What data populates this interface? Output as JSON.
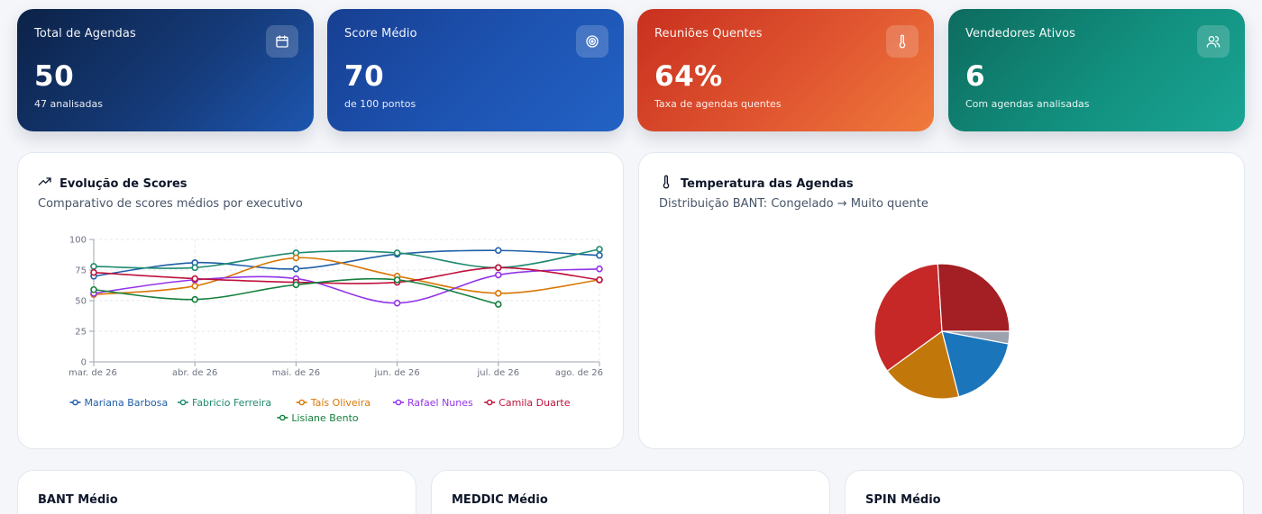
{
  "kpis": [
    {
      "title": "Total de Agendas",
      "value": "50",
      "sub": "47 analisadas",
      "icon": "calendar-icon"
    },
    {
      "title": "Score Médio",
      "value": "70",
      "sub": "de 100 pontos",
      "icon": "target-icon"
    },
    {
      "title": "Reuniões Quentes",
      "value": "64%",
      "sub": "Taxa de agendas quentes",
      "icon": "thermometer-icon"
    },
    {
      "title": "Vendedores Ativos",
      "value": "6",
      "sub": "Com agendas analisadas",
      "icon": "users-icon"
    }
  ],
  "line_card": {
    "title": "Evolução de Scores",
    "subtitle": "Comparativo de scores médios por executivo",
    "icon": "trending-up-icon"
  },
  "pie_card": {
    "title": "Temperatura das Agendas",
    "subtitle": "Distribuição BANT: Congelado → Muito quente",
    "icon": "thermometer-icon"
  },
  "bottom_cards": [
    {
      "title": "BANT Médio"
    },
    {
      "title": "MEDDIC Médio"
    },
    {
      "title": "SPIN Médio"
    }
  ],
  "chart_data": [
    {
      "type": "line",
      "title": "",
      "xlabel": "",
      "ylabel": "",
      "categories": [
        "mar. de 26",
        "abr. de 26",
        "mai. de 26",
        "jun. de 26",
        "jul. de 26",
        "ago. de 26"
      ],
      "ylim": [
        0,
        100
      ],
      "yticks": [
        "0",
        "25",
        "50",
        "75",
        "100"
      ],
      "grid": true,
      "legend": "bottom",
      "series": [
        {
          "name": "Mariana Barbosa",
          "color": "#1f5fa8",
          "values": [
            70,
            81,
            76,
            88,
            91,
            87
          ]
        },
        {
          "name": "Fabricio Ferreira",
          "color": "#1f8a70",
          "values": [
            78,
            77,
            89,
            89,
            77,
            92
          ]
        },
        {
          "name": "Taís Oliveira",
          "color": "#d97706",
          "values": [
            55,
            62,
            85,
            70,
            56,
            67
          ]
        },
        {
          "name": "Rafael Nunes",
          "color": "#9333ea",
          "values": [
            56,
            67,
            68,
            48,
            71,
            76
          ]
        },
        {
          "name": "Camila Duarte",
          "color": "#be123c",
          "values": [
            73,
            68,
            65,
            65,
            77,
            67
          ]
        },
        {
          "name": "Lisiane Bento",
          "color": "#15803d",
          "values": [
            59,
            51,
            63,
            67,
            47,
            null
          ]
        }
      ]
    },
    {
      "type": "pie",
      "title": "",
      "legend": "none",
      "slices": [
        {
          "label": "",
          "value": 3,
          "color": "#9ca3af"
        },
        {
          "label": "",
          "value": 18,
          "color": "#1b75bb"
        },
        {
          "label": "",
          "value": 19,
          "color": "#c2770b"
        },
        {
          "label": "",
          "value": 34,
          "color": "#c62828"
        },
        {
          "label": "",
          "value": 26,
          "color": "#a31f24"
        }
      ]
    }
  ]
}
